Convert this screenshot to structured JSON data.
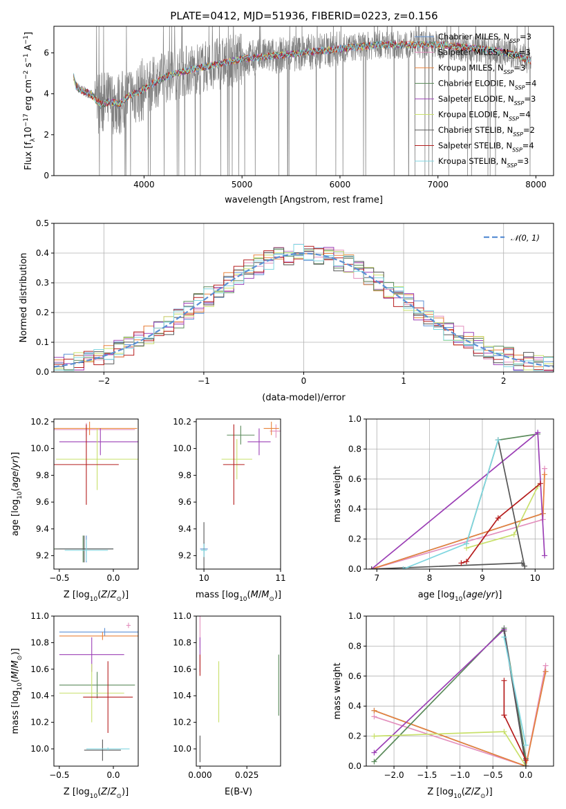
{
  "figure": {
    "title": "PLATE=0412, MJD=51936, FIBERID=0223, z=0.156"
  },
  "colors": {
    "Chabrier MILES": "#5b8fd4",
    "Salpeter MILES": "#e38fbd",
    "Kroupa MILES": "#e8823a",
    "Chabrier ELODIE": "#5a8a5a",
    "Salpeter ELODIE": "#9b3fb5",
    "Kroupa ELODIE": "#c8e06a",
    "Chabrier STELIB": "#555555",
    "Salpeter STELIB": "#b51c1c",
    "Kroupa STELIB": "#7fd6e0",
    "data": "#808080",
    "normal": "#5b8fd4"
  },
  "chart_data": [
    {
      "id": "spectrum",
      "type": "line",
      "xlabel": "wavelength [Angstrom, rest frame]",
      "ylabel": "Flux [f_λ 10^-17 erg cm^-2 s^-1 A^-1]",
      "xlim": [
        3080,
        8180
      ],
      "ylim": [
        0,
        7.3
      ],
      "xticks": [
        4000,
        5000,
        6000,
        7000,
        8000
      ],
      "yticks": [
        0,
        2,
        4,
        6
      ],
      "grid": false,
      "legend_position": "upper right",
      "legend": [
        {
          "name": "Chabrier MILES",
          "nssp": "3"
        },
        {
          "name": "Salpeter MILES",
          "nssp": "3"
        },
        {
          "name": "Kroupa MILES",
          "nssp": "3"
        },
        {
          "name": "Chabrier ELODIE",
          "nssp": "4"
        },
        {
          "name": "Salpeter ELODIE",
          "nssp": "3"
        },
        {
          "name": "Kroupa ELODIE",
          "nssp": "4"
        },
        {
          "name": "Chabrier STELIB",
          "nssp": "2"
        },
        {
          "name": "Salpeter STELIB",
          "nssp": "4"
        },
        {
          "name": "Kroupa STELIB",
          "nssp": "3"
        }
      ],
      "continuum": {
        "x": [
          3280,
          3300,
          3350,
          3450,
          3550,
          3650,
          3750,
          3850,
          3950,
          4050,
          4200,
          4400,
          4600,
          4800,
          5000,
          5200,
          5400,
          5600,
          5800,
          6000,
          6200,
          6400,
          6600,
          6800,
          7000,
          7200,
          7400,
          7600,
          7800,
          7950
        ],
        "y": [
          4.9,
          4.4,
          4.2,
          4.0,
          3.5,
          3.6,
          3.5,
          3.9,
          4.1,
          4.4,
          4.8,
          5.1,
          5.3,
          5.5,
          5.7,
          5.8,
          5.9,
          6.0,
          6.1,
          6.2,
          6.3,
          6.4,
          6.4,
          6.4,
          6.4,
          6.3,
          6.2,
          6.1,
          5.9,
          5.6
        ]
      }
    },
    {
      "id": "residuals",
      "type": "bar",
      "xlabel": "(data-model)/error",
      "ylabel": "Normed distribution",
      "xlim": [
        -2.5,
        2.5
      ],
      "ylim": [
        0,
        0.5
      ],
      "xticks": [
        -2,
        -1,
        0,
        1,
        2
      ],
      "yticks": [
        0.0,
        0.1,
        0.2,
        0.3,
        0.4,
        0.5
      ],
      "grid": true,
      "legend_position": "upper right",
      "legend": [
        "𝒩(0, 1)"
      ],
      "bin_width": 0.1,
      "normal": {
        "mean": 0,
        "sigma": 1
      }
    },
    {
      "id": "age-vs-Z",
      "type": "scatter",
      "xlabel": "Z [log10(Z/Z⊙)]",
      "ylabel": "age  [log10(age/yr)]",
      "xlim": [
        -0.55,
        0.23
      ],
      "ylim": [
        9.1,
        10.22
      ],
      "xticks": [
        -0.5,
        0.0
      ],
      "yticks": [
        9.2,
        9.4,
        9.6,
        9.8,
        10.0,
        10.2
      ],
      "points": [
        {
          "model": "Chabrier MILES",
          "x": -0.25,
          "y": 9.25,
          "xerr": 0.25,
          "yerr": 0.1
        },
        {
          "model": "Salpeter MILES",
          "x": -0.25,
          "y": 10.14,
          "xerr": 0.45,
          "yerr": 0.05
        },
        {
          "model": "Kroupa MILES",
          "x": -0.22,
          "y": 10.15,
          "xerr": 0.44,
          "yerr": 0.05
        },
        {
          "model": "Chabrier ELODIE",
          "x": -0.28,
          "y": 9.25,
          "xerr": 0.28,
          "yerr": 0.1
        },
        {
          "model": "Salpeter ELODIE",
          "x": -0.12,
          "y": 10.05,
          "xerr": 0.38,
          "yerr": 0.1
        },
        {
          "model": "Kroupa ELODIE",
          "x": -0.15,
          "y": 9.92,
          "xerr": 0.38,
          "yerr": 0.23
        },
        {
          "model": "Chabrier STELIB",
          "x": -0.27,
          "y": 9.25,
          "xerr": 0.27,
          "yerr": 0.1
        },
        {
          "model": "Salpeter STELIB",
          "x": -0.25,
          "y": 9.88,
          "xerr": 0.3,
          "yerr": 0.3
        },
        {
          "model": "Kroupa STELIB",
          "x": -0.25,
          "y": 9.24,
          "xerr": 0.2,
          "yerr": 0.08
        }
      ]
    },
    {
      "id": "age-vs-mass",
      "type": "scatter",
      "xlabel": "mass [log10(M/M⊙)]",
      "ylabel": "",
      "xlim": [
        9.9,
        11.0
      ],
      "ylim": [
        9.1,
        10.22
      ],
      "xticks": [
        10,
        11
      ],
      "yticks": [
        9.2,
        9.4,
        9.6,
        9.8,
        10.0,
        10.2
      ],
      "points": [
        {
          "model": "Chabrier MILES",
          "x": 10.0,
          "y": 9.25,
          "xerr": 0.05,
          "yerr": 0.05
        },
        {
          "model": "Salpeter MILES",
          "x": 10.94,
          "y": 10.13,
          "xerr": 0.08,
          "yerr": 0.05
        },
        {
          "model": "Kroupa MILES",
          "x": 10.88,
          "y": 10.15,
          "xerr": 0.1,
          "yerr": 0.05
        },
        {
          "model": "Chabrier ELODIE",
          "x": 10.48,
          "y": 10.1,
          "xerr": 0.18,
          "yerr": 0.07
        },
        {
          "model": "Salpeter ELODIE",
          "x": 10.72,
          "y": 10.05,
          "xerr": 0.15,
          "yerr": 0.1
        },
        {
          "model": "Kroupa ELODIE",
          "x": 10.43,
          "y": 9.92,
          "xerr": 0.2,
          "yerr": 0.15
        },
        {
          "model": "Chabrier STELIB",
          "x": 10.0,
          "y": 9.25,
          "xerr": 0.01,
          "yerr": 0.2
        },
        {
          "model": "Salpeter STELIB",
          "x": 10.39,
          "y": 9.88,
          "xerr": 0.14,
          "yerr": 0.3
        },
        {
          "model": "Kroupa STELIB",
          "x": 10.0,
          "y": 9.24,
          "xerr": 0.04,
          "yerr": 0.05
        }
      ]
    },
    {
      "id": "weight-vs-age",
      "type": "line",
      "xlabel": "age  [log10(age/yr)]",
      "ylabel": "mass weight",
      "xlim": [
        6.8,
        10.35
      ],
      "ylim": [
        0,
        1.0
      ],
      "xticks": [
        7,
        8,
        9,
        10
      ],
      "yticks": [
        0.0,
        0.2,
        0.4,
        0.6,
        0.8,
        1.0
      ],
      "grid": true,
      "series": [
        {
          "model": "Chabrier MILES",
          "x": [
            6.9,
            10.15
          ],
          "y": [
            0.0,
            0.37
          ]
        },
        {
          "model": "Salpeter MILES",
          "x": [
            6.9,
            10.15,
            10.18
          ],
          "y": [
            0.0,
            0.33,
            0.67
          ]
        },
        {
          "model": "Kroupa MILES",
          "x": [
            6.9,
            10.15,
            10.18
          ],
          "y": [
            0.0,
            0.37,
            0.63
          ]
        },
        {
          "model": "Chabrier ELODIE",
          "x": [
            8.7,
            9.3,
            10.05
          ],
          "y": [
            0.17,
            0.86,
            0.9
          ]
        },
        {
          "model": "Salpeter ELODIE",
          "x": [
            6.9,
            10.05,
            10.18
          ],
          "y": [
            0.0,
            0.91,
            0.09
          ]
        },
        {
          "model": "Kroupa ELODIE",
          "x": [
            8.7,
            9.6,
            10.05
          ],
          "y": [
            0.14,
            0.23,
            0.55
          ]
        },
        {
          "model": "Chabrier STELIB",
          "x": [
            6.9,
            9.75,
            9.8,
            9.3
          ],
          "y": [
            0.0,
            0.04,
            0.02,
            0.86
          ]
        },
        {
          "model": "Salpeter STELIB",
          "x": [
            8.6,
            8.7,
            9.3,
            10.1
          ],
          "y": [
            0.04,
            0.05,
            0.34,
            0.57
          ]
        },
        {
          "model": "Kroupa STELIB",
          "x": [
            7.5,
            8.7,
            9.3
          ],
          "y": [
            0.0,
            0.17,
            0.86
          ]
        }
      ]
    },
    {
      "id": "mass-vs-Z",
      "type": "scatter",
      "xlabel": "Z [log10(Z/Z⊙)]",
      "ylabel": "mass [log10(M/M⊙)]",
      "xlim": [
        -0.55,
        0.23
      ],
      "ylim": [
        9.87,
        11.0
      ],
      "xticks": [
        -0.5,
        0.0
      ],
      "yticks": [
        10.0,
        10.2,
        10.4,
        10.6,
        10.8,
        11.0
      ],
      "points": [
        {
          "model": "Chabrier MILES",
          "x": -0.08,
          "y": 10.88,
          "xerr": 0.42,
          "yerr": 0.03
        },
        {
          "model": "Salpeter MILES",
          "x": 0.14,
          "y": 10.93,
          "xerr": 0.02,
          "yerr": 0.02
        },
        {
          "model": "Kroupa MILES",
          "x": -0.1,
          "y": 10.85,
          "xerr": 0.4,
          "yerr": 0.03
        },
        {
          "model": "Chabrier ELODIE",
          "x": -0.15,
          "y": 10.48,
          "xerr": 0.35,
          "yerr": 0.1
        },
        {
          "model": "Salpeter ELODIE",
          "x": -0.2,
          "y": 10.71,
          "xerr": 0.3,
          "yerr": 0.13
        },
        {
          "model": "Kroupa ELODIE",
          "x": -0.2,
          "y": 10.42,
          "xerr": 0.3,
          "yerr": 0.22
        },
        {
          "model": "Chabrier STELIB",
          "x": -0.1,
          "y": 9.99,
          "xerr": 0.17,
          "yerr": 0.08
        },
        {
          "model": "Salpeter STELIB",
          "x": -0.05,
          "y": 10.39,
          "xerr": 0.23,
          "yerr": 0.27
        },
        {
          "model": "Kroupa STELIB",
          "x": -0.05,
          "y": 10.0,
          "xerr": 0.2,
          "yerr": 0.01
        }
      ]
    },
    {
      "id": "mass-vs-ebv",
      "type": "scatter",
      "xlabel": "E(B-V)",
      "ylabel": "",
      "xlim": [
        -0.002,
        0.043
      ],
      "ylim": [
        9.87,
        11.0
      ],
      "xticks": [
        0.0,
        0.025
      ],
      "xticklabels": [
        "0.000",
        "0.025"
      ],
      "yticks": [
        10.0,
        10.2,
        10.4,
        10.6,
        10.8,
        11.0
      ],
      "points": [
        {
          "model": "Salpeter MILES",
          "x": 0.0,
          "y": 10.88,
          "xerr": 0.0,
          "yerr": 0.12
        },
        {
          "model": "Salpeter ELODIE",
          "x": 0.0,
          "y": 10.71,
          "xerr": 0.0,
          "yerr": 0.13
        },
        {
          "model": "Salpeter STELIB",
          "x": 0.0,
          "y": 10.63,
          "xerr": 0.0,
          "yerr": 0.08
        },
        {
          "model": "Chabrier STELIB",
          "x": 0.0,
          "y": 10.0,
          "xerr": 0.0,
          "yerr": 0.1
        },
        {
          "model": "Kroupa ELODIE",
          "x": 0.01,
          "y": 10.43,
          "xerr": 0.0,
          "yerr": 0.23
        },
        {
          "model": "Chabrier ELODIE",
          "x": 0.042,
          "y": 10.48,
          "xerr": 0.0,
          "yerr": 0.23
        }
      ]
    },
    {
      "id": "weight-vs-Z",
      "type": "line",
      "xlabel": "Z [log10(Z/Z⊙)]",
      "ylabel": "mass weight",
      "xlim": [
        -2.42,
        0.42
      ],
      "ylim": [
        0,
        1.0
      ],
      "xticks": [
        -2.0,
        -1.5,
        -1.0,
        -0.5,
        0.0
      ],
      "yticks": [
        0.0,
        0.2,
        0.4,
        0.6,
        0.8,
        1.0
      ],
      "grid": true,
      "series": [
        {
          "model": "Chabrier MILES",
          "x": [
            -2.3,
            0.0,
            0.3
          ],
          "y": [
            0.37,
            0.0,
            0.63
          ]
        },
        {
          "model": "Salpeter MILES",
          "x": [
            -2.3,
            0.0,
            0.3
          ],
          "y": [
            0.33,
            0.0,
            0.67
          ]
        },
        {
          "model": "Kroupa MILES",
          "x": [
            -2.3,
            0.0,
            0.3
          ],
          "y": [
            0.37,
            0.0,
            0.63
          ]
        },
        {
          "model": "Chabrier ELODIE",
          "x": [
            -2.3,
            -0.33,
            0.0
          ],
          "y": [
            0.03,
            0.92,
            0.05
          ]
        },
        {
          "model": "Salpeter ELODIE",
          "x": [
            -2.3,
            -0.33,
            0.0
          ],
          "y": [
            0.09,
            0.91,
            0.0
          ]
        },
        {
          "model": "Kroupa ELODIE",
          "x": [
            -2.3,
            -0.33,
            0.0
          ],
          "y": [
            0.2,
            0.23,
            0.0
          ]
        },
        {
          "model": "Chabrier STELIB",
          "x": [
            -0.33,
            0.0
          ],
          "y": [
            0.9,
            0.0
          ]
        },
        {
          "model": "Salpeter STELIB",
          "x": [
            -0.33,
            -0.33,
            0.0
          ],
          "y": [
            0.57,
            0.34,
            0.04
          ]
        },
        {
          "model": "Kroupa STELIB",
          "x": [
            -0.33,
            0.0
          ],
          "y": [
            0.86,
            0.14
          ]
        }
      ]
    }
  ]
}
